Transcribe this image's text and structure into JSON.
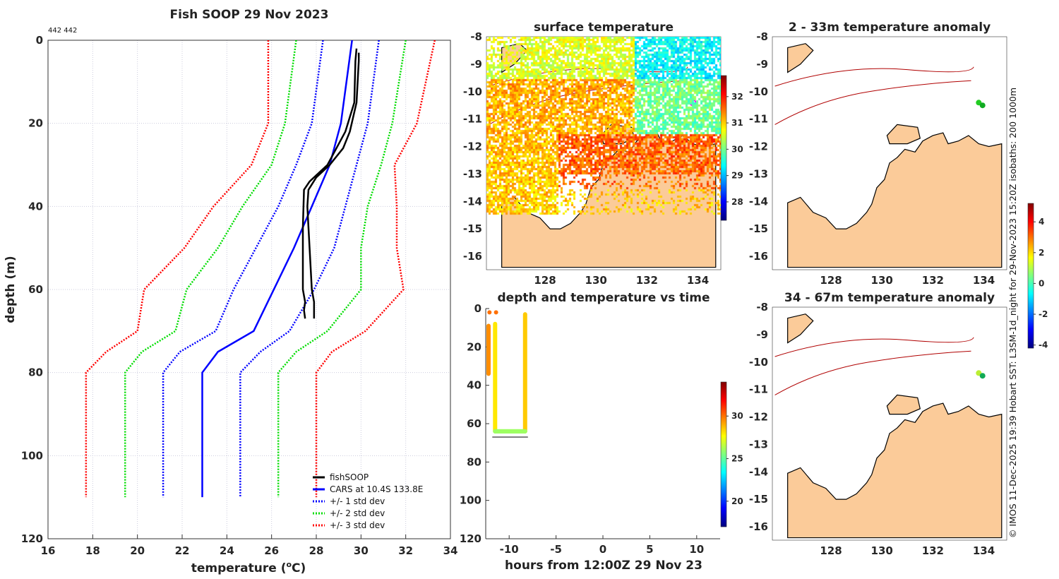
{
  "figure": {
    "main_title": "Fish SOOP 29 Nov 2023",
    "corner_label": "442 442",
    "credit": "© IMOS 11-Dec-2025 19:39 Hobart SST: L3SM-1d_night for 29-Nov-2023 15:20Z isobaths: 200  1000m"
  },
  "colors": {
    "fishsoop": "#000000",
    "cars": "#0000ff",
    "std1": "#0000ff",
    "std2": "#00dd00",
    "std3": "#ff0000",
    "land": "#fbcb99",
    "isobath": "#b00000"
  },
  "chart_data": [
    {
      "type": "line",
      "title": "Fish SOOP 29 Nov 2023",
      "xlabel": "temperature (°C)",
      "xlabel_main": "temperature (",
      "xlabel_sup": "o",
      "xlabel_end": "C)",
      "ylabel": "depth (m)",
      "xlim": [
        16,
        34
      ],
      "ylim": [
        0,
        120
      ],
      "y_reversed": true,
      "grid": true,
      "xticks": [
        "16",
        "18",
        "20",
        "22",
        "24",
        "26",
        "28",
        "30",
        "32",
        "34"
      ],
      "yticks": [
        "0",
        "20",
        "40",
        "60",
        "80",
        "100",
        "120"
      ],
      "legend_position": "bottom-right",
      "depths": [
        0,
        20,
        30,
        40,
        50,
        60,
        70,
        75,
        80,
        110
      ],
      "series": [
        {
          "name": "+/- 3 std dev",
          "key": "m3",
          "style": "dotted",
          "color": "#ff0000",
          "temps": [
            25.85,
            25.85,
            25.1,
            23.4,
            22.1,
            20.3,
            20.0,
            18.6,
            17.7,
            17.7
          ]
        },
        {
          "name": "+/- 2 std dev",
          "key": "m2",
          "style": "dotted",
          "color": "#00dd00",
          "temps": [
            27.1,
            26.6,
            26.0,
            24.7,
            23.6,
            22.2,
            21.7,
            20.2,
            19.45,
            19.45
          ]
        },
        {
          "name": "+/- 1 std dev",
          "key": "m1",
          "style": "dotted",
          "color": "#0000ff",
          "temps": [
            28.3,
            27.8,
            27.1,
            26.3,
            25.3,
            24.3,
            23.5,
            21.9,
            21.15,
            21.15
          ]
        },
        {
          "name": "CARS at 10.4S 133.8E",
          "key": "mean",
          "style": "solid",
          "color": "#0000ff",
          "temps": [
            29.6,
            29.1,
            28.6,
            27.8,
            27.0,
            26.1,
            25.2,
            23.6,
            22.9,
            22.9
          ]
        },
        {
          "name": "+/- 1 std dev",
          "key": "p1",
          "style": "dotted",
          "color": "#0000ff",
          "temps": [
            30.8,
            30.3,
            29.8,
            29.3,
            28.8,
            27.9,
            26.8,
            25.5,
            24.6,
            24.6
          ]
        },
        {
          "name": "+/- 2 std dev",
          "key": "p2",
          "style": "dotted",
          "color": "#00dd00",
          "temps": [
            32.0,
            31.4,
            30.9,
            30.3,
            30.0,
            30.0,
            28.5,
            27.1,
            26.3,
            26.3
          ]
        },
        {
          "name": "+/- 3 std dev",
          "key": "p3",
          "style": "dotted",
          "color": "#ff0000",
          "temps": [
            33.3,
            32.5,
            31.5,
            31.6,
            31.6,
            31.9,
            30.2,
            28.7,
            28.0,
            28.0
          ]
        }
      ],
      "fishsoop": [
        {
          "depth": [
            2,
            5,
            15,
            22,
            26,
            30,
            34,
            36,
            45,
            55,
            60,
            63,
            65,
            67
          ],
          "temp": [
            29.8,
            29.75,
            29.7,
            29.3,
            28.9,
            28.5,
            27.7,
            27.45,
            27.4,
            27.4,
            27.4,
            27.5,
            27.45,
            27.5
          ]
        },
        {
          "depth": [
            67,
            63,
            60,
            50,
            40,
            36,
            33,
            30,
            26,
            22,
            15,
            5,
            3
          ],
          "temp": [
            27.9,
            27.9,
            27.8,
            27.7,
            27.6,
            27.65,
            28.0,
            28.6,
            29.2,
            29.5,
            29.8,
            29.9,
            29.9
          ]
        }
      ],
      "legend": [
        "fishSOOP",
        "CARS at 10.4S 133.8E",
        "+/- 1 std dev",
        "+/- 2 std dev",
        "+/- 3 std dev"
      ]
    },
    {
      "type": "scatter",
      "title": "depth and temperature vs time",
      "xlabel": "hours from 12:00Z 29 Nov 23",
      "xlim": [
        -12.5,
        12.5
      ],
      "ylim": [
        0,
        120
      ],
      "y_reversed": true,
      "xticks": [
        "-10",
        "-5",
        "0",
        "5",
        "10"
      ],
      "yticks": [
        "0",
        "20",
        "40",
        "60",
        "80",
        "100",
        "120"
      ],
      "colorbar": {
        "min": 17,
        "max": 34,
        "ticks": [
          "20",
          "25",
          "30"
        ]
      },
      "points": [
        {
          "h": -12.2,
          "d0": 9,
          "d1": 34,
          "t": 29.5
        },
        {
          "h": -12.1,
          "d0": 2,
          "d1": 2,
          "t": 30
        },
        {
          "h": -11.4,
          "d0": 2,
          "d1": 2,
          "t": 30
        },
        {
          "h": -11.5,
          "d0": 8,
          "d1": 64,
          "t": 28
        },
        {
          "h": -8.3,
          "d0": 3,
          "d1": 64,
          "t": 28.5
        },
        {
          "h": -11.5,
          "d0": 62,
          "d1": 66,
          "t": 26
        },
        {
          "h": -8.3,
          "d0": 62,
          "d1": 66,
          "t": 26
        }
      ],
      "bottom_line": {
        "h": [
          -11.8,
          -8.0
        ],
        "d": 67
      }
    }
  ],
  "maps": {
    "lon_ticks": [
      "128",
      "130",
      "132",
      "134"
    ],
    "lat_ticks": [
      "-8",
      "-9",
      "-10",
      "-11",
      "-12",
      "-13",
      "-14",
      "-15",
      "-16"
    ],
    "surface": {
      "title": "surface temperature",
      "colorbar": {
        "ticks": [
          "28",
          "29",
          "30",
          "31",
          "32"
        ]
      }
    },
    "anom1": {
      "title": "2 - 33m temperature anomaly"
    },
    "anom2": {
      "title": "34 - 67m temperature anomaly"
    },
    "anom_colorbar": {
      "ticks": [
        "-4",
        "-2",
        "0",
        "2",
        "4"
      ]
    }
  }
}
